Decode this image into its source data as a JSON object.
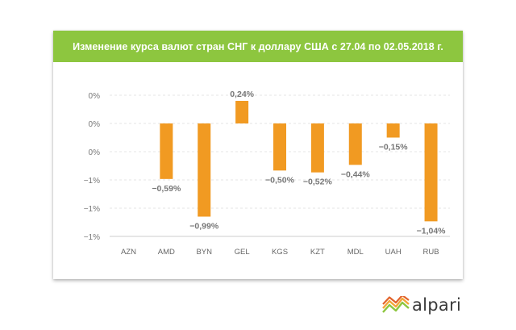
{
  "chart_data": {
    "type": "bar",
    "title": "Изменение курса валют стран СНГ к доллару США с 27.04 по 02.05.2018 г.",
    "xlabel": "",
    "ylabel": "",
    "categories": [
      "AZN",
      "AMD",
      "BYN",
      "GEL",
      "KGS",
      "KZT",
      "MDL",
      "UAH",
      "RUB"
    ],
    "values": [
      0,
      -0.59,
      -0.99,
      0.24,
      -0.5,
      -0.52,
      -0.44,
      -0.15,
      -1.04
    ],
    "data_labels": [
      "",
      "−0,59%",
      "−0,99%",
      "0,24%",
      "−0,50%",
      "−0,52%",
      "−0,44%",
      "−0,15%",
      "−1,04%"
    ],
    "ylim": [
      -1.2,
      0.3
    ],
    "yticks": [
      0.3,
      0.0,
      -0.3,
      -0.6,
      -0.9,
      -1.2
    ],
    "ytick_labels": [
      "0%",
      "0%",
      "0%",
      "−1%",
      "−1%",
      "−1%"
    ],
    "grid": true,
    "bar_color": "#f19a22"
  },
  "brand": {
    "name": "alpari",
    "header_color": "#8dc63f"
  }
}
